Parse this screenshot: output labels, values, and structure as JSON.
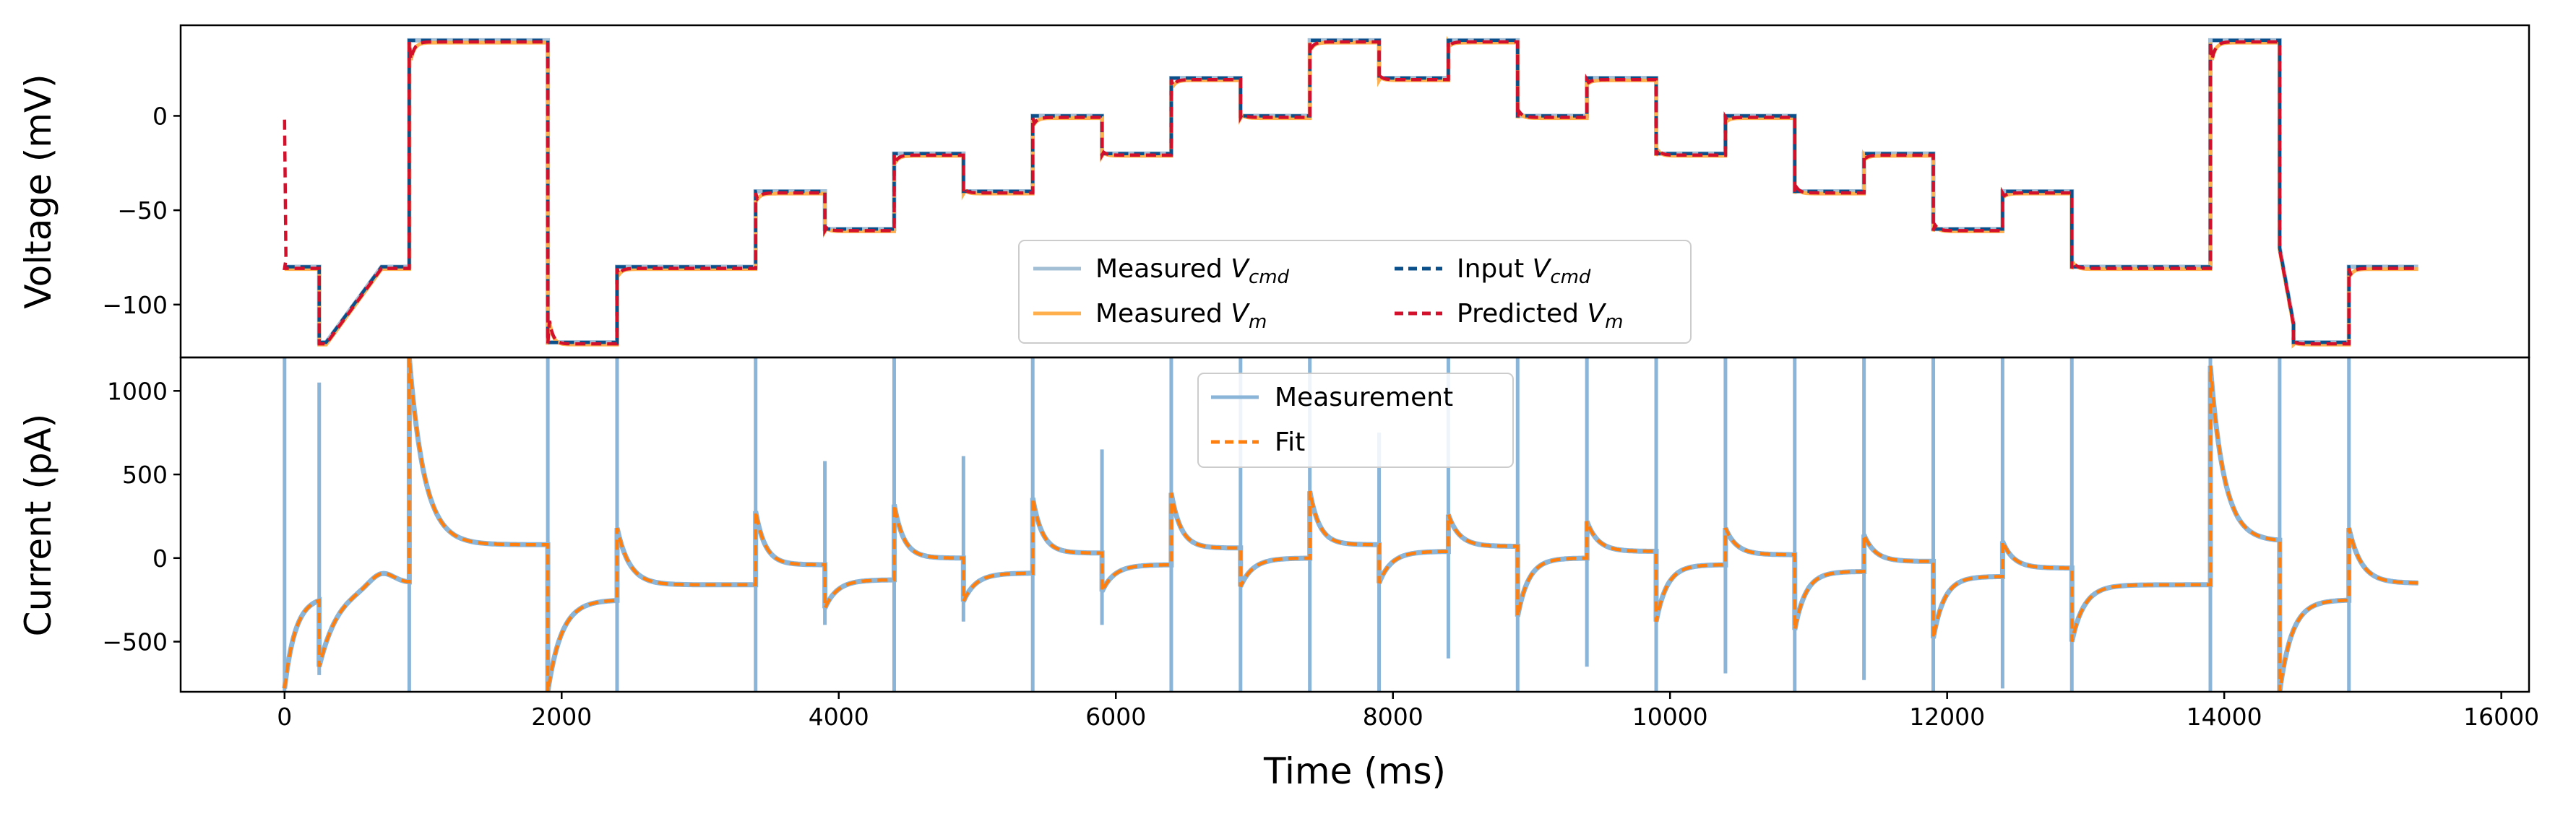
{
  "chart_data": [
    {
      "type": "line",
      "panel": "top",
      "xlabel": "",
      "ylabel": "Voltage (mV)",
      "xlim": [
        -750,
        16200
      ],
      "ylim": [
        -128,
        48
      ],
      "yticks": [
        {
          "value": 0,
          "label": "0"
        },
        {
          "value": -50,
          "label": "−50"
        },
        {
          "value": -100,
          "label": "−100"
        }
      ],
      "legend": {
        "placement": "lower center",
        "entries": [
          {
            "main": "Measured ",
            "sub": "V",
            "italic_sub": "cmd",
            "color": "#a3bfd6",
            "dash": "solid"
          },
          {
            "main": "Input ",
            "sub": "V",
            "italic_sub": "cmd",
            "color": "#0b4f8a",
            "dash": "dashed"
          },
          {
            "main": "Measured ",
            "sub": "V",
            "italic_sub": "m",
            "color": "#ffb04d",
            "dash": "solid"
          },
          {
            "main": "Predicted ",
            "sub": "V",
            "italic_sub": "m",
            "color": "#d3102c",
            "dash": "dashed"
          }
        ]
      },
      "steps": [
        {
          "t0": 0,
          "t1": 250,
          "v": -80,
          "ramp": false
        },
        {
          "t0": 250,
          "t1": 300,
          "v": -120,
          "ramp": false
        },
        {
          "t0": 300,
          "t1": 700,
          "v_start": -120,
          "v_end": -80,
          "ramp": true
        },
        {
          "t0": 700,
          "t1": 900,
          "v": -80,
          "ramp": false
        },
        {
          "t0": 900,
          "t1": 1900,
          "v": 40,
          "ramp": false
        },
        {
          "t0": 1900,
          "t1": 2400,
          "v": -120,
          "ramp": false
        },
        {
          "t0": 2400,
          "t1": 3400,
          "v": -80,
          "ramp": false
        },
        {
          "t0": 3400,
          "t1": 3900,
          "v": -40,
          "ramp": false
        },
        {
          "t0": 3900,
          "t1": 4400,
          "v": -60,
          "ramp": false
        },
        {
          "t0": 4400,
          "t1": 4900,
          "v": -20,
          "ramp": false
        },
        {
          "t0": 4900,
          "t1": 5400,
          "v": -40,
          "ramp": false
        },
        {
          "t0": 5400,
          "t1": 5900,
          "v": 0,
          "ramp": false
        },
        {
          "t0": 5900,
          "t1": 6400,
          "v": -20,
          "ramp": false
        },
        {
          "t0": 6400,
          "t1": 6900,
          "v": 20,
          "ramp": false
        },
        {
          "t0": 6900,
          "t1": 7400,
          "v": 0,
          "ramp": false
        },
        {
          "t0": 7400,
          "t1": 7900,
          "v": 40,
          "ramp": false
        },
        {
          "t0": 7900,
          "t1": 8400,
          "v": 20,
          "ramp": false
        },
        {
          "t0": 8400,
          "t1": 8900,
          "v": 40,
          "ramp": false
        },
        {
          "t0": 8900,
          "t1": 9400,
          "v": 0,
          "ramp": false
        },
        {
          "t0": 9400,
          "t1": 9900,
          "v": 20,
          "ramp": false
        },
        {
          "t0": 9900,
          "t1": 10400,
          "v": -20,
          "ramp": false
        },
        {
          "t0": 10400,
          "t1": 10900,
          "v": 0,
          "ramp": false
        },
        {
          "t0": 10900,
          "t1": 11400,
          "v": -40,
          "ramp": false
        },
        {
          "t0": 11400,
          "t1": 11900,
          "v": -20,
          "ramp": false
        },
        {
          "t0": 11900,
          "t1": 12400,
          "v": -60,
          "ramp": false
        },
        {
          "t0": 12400,
          "t1": 12900,
          "v": -40,
          "ramp": false
        },
        {
          "t0": 12900,
          "t1": 13900,
          "v": -80,
          "ramp": false
        },
        {
          "t0": 13900,
          "t1": 14400,
          "v": 40,
          "ramp": false
        },
        {
          "t0": 14400,
          "t1": 14500,
          "v_start": -70,
          "v_end": -110,
          "ramp": true
        },
        {
          "t0": 14500,
          "t1": 14900,
          "v": -120,
          "ramp": false
        },
        {
          "t0": 14900,
          "t1": 15400,
          "v": -80,
          "ramp": false
        }
      ],
      "predicted_initial": {
        "t": 0,
        "v": -2
      }
    },
    {
      "type": "line",
      "panel": "bottom",
      "xlabel": "Time (ms)",
      "ylabel": "Current (pA)",
      "xlim": [
        -750,
        16200
      ],
      "ylim": [
        -800,
        1200
      ],
      "xticks": [
        {
          "value": 0,
          "label": "0"
        },
        {
          "value": 2000,
          "label": "2000"
        },
        {
          "value": 4000,
          "label": "4000"
        },
        {
          "value": 6000,
          "label": "6000"
        },
        {
          "value": 8000,
          "label": "8000"
        },
        {
          "value": 10000,
          "label": "10000"
        },
        {
          "value": 12000,
          "label": "12000"
        },
        {
          "value": 14000,
          "label": "14000"
        },
        {
          "value": 16000,
          "label": "16000"
        }
      ],
      "yticks": [
        {
          "value": 1000,
          "label": "1000"
        },
        {
          "value": 500,
          "label": "500"
        },
        {
          "value": 0,
          "label": "0"
        },
        {
          "value": -500,
          "label": "−500"
        }
      ],
      "legend": {
        "placement": "upper center",
        "entries": [
          {
            "label": "Measurement",
            "color": "#8ab4d8",
            "dash": "solid"
          },
          {
            "label": "Fit",
            "color": "#ff7f0e",
            "dash": "dashed"
          }
        ]
      },
      "segments": [
        {
          "t0": 0,
          "t1": 250,
          "start": -780,
          "end": -230,
          "tau": 80
        },
        {
          "t0": 250,
          "t1": 900,
          "start": -650,
          "end": -140,
          "tau": 150,
          "bump": {
            "t": 700,
            "v": -60
          }
        },
        {
          "t0": 900,
          "t1": 1900,
          "start": 1200,
          "end": 80,
          "tau": 110
        },
        {
          "t0": 1900,
          "t1": 2400,
          "start": -800,
          "end": -250,
          "tau": 100
        },
        {
          "t0": 2400,
          "t1": 3400,
          "start": 180,
          "end": -160,
          "tau": 90
        },
        {
          "t0": 3400,
          "t1": 3900,
          "start": 280,
          "end": -40,
          "tau": 70
        },
        {
          "t0": 3900,
          "t1": 4400,
          "start": -300,
          "end": -130,
          "tau": 90
        },
        {
          "t0": 4400,
          "t1": 4900,
          "start": 320,
          "end": 0,
          "tau": 70
        },
        {
          "t0": 4900,
          "t1": 5400,
          "start": -260,
          "end": -90,
          "tau": 90
        },
        {
          "t0": 5400,
          "t1": 5900,
          "start": 360,
          "end": 30,
          "tau": 70
        },
        {
          "t0": 5900,
          "t1": 6400,
          "start": -200,
          "end": -40,
          "tau": 90
        },
        {
          "t0": 6400,
          "t1": 6900,
          "start": 390,
          "end": 60,
          "tau": 70
        },
        {
          "t0": 6900,
          "t1": 7400,
          "start": -170,
          "end": 0,
          "tau": 90
        },
        {
          "t0": 7400,
          "t1": 7900,
          "start": 400,
          "end": 80,
          "tau": 70
        },
        {
          "t0": 7900,
          "t1": 8400,
          "start": -150,
          "end": 40,
          "tau": 90
        },
        {
          "t0": 8400,
          "t1": 8900,
          "start": 260,
          "end": 70,
          "tau": 80
        },
        {
          "t0": 8900,
          "t1": 9400,
          "start": -350,
          "end": 0,
          "tau": 80
        },
        {
          "t0": 9400,
          "t1": 9900,
          "start": 220,
          "end": 40,
          "tau": 80
        },
        {
          "t0": 9900,
          "t1": 10400,
          "start": -380,
          "end": -40,
          "tau": 80
        },
        {
          "t0": 10400,
          "t1": 10900,
          "start": 180,
          "end": 20,
          "tau": 80
        },
        {
          "t0": 10900,
          "t1": 11400,
          "start": -430,
          "end": -80,
          "tau": 80
        },
        {
          "t0": 11400,
          "t1": 11900,
          "start": 140,
          "end": -20,
          "tau": 80
        },
        {
          "t0": 11900,
          "t1": 12400,
          "start": -480,
          "end": -110,
          "tau": 80
        },
        {
          "t0": 12400,
          "t1": 12900,
          "start": 100,
          "end": -60,
          "tau": 80
        },
        {
          "t0": 12900,
          "t1": 13900,
          "start": -500,
          "end": -160,
          "tau": 90
        },
        {
          "t0": 13900,
          "t1": 14400,
          "start": 1150,
          "end": 100,
          "tau": 100
        },
        {
          "t0": 14400,
          "t1": 14900,
          "start": -800,
          "end": -250,
          "tau": 90
        },
        {
          "t0": 14900,
          "t1": 15400,
          "start": 180,
          "end": -150,
          "tau": 90
        }
      ],
      "spikes": [
        {
          "t": 0,
          "up": 1200,
          "down": -800
        },
        {
          "t": 250,
          "up": 1050,
          "down": -700
        },
        {
          "t": 900,
          "up": 1200,
          "down": -800
        },
        {
          "t": 1900,
          "up": 1200,
          "down": -800
        },
        {
          "t": 2400,
          "up": 1200,
          "down": -800
        },
        {
          "t": 3400,
          "up": 1200,
          "down": -800
        },
        {
          "t": 3900,
          "up": 580,
          "down": -400
        },
        {
          "t": 4400,
          "up": 1200,
          "down": -800
        },
        {
          "t": 4900,
          "up": 610,
          "down": -380
        },
        {
          "t": 5400,
          "up": 1200,
          "down": -800
        },
        {
          "t": 5900,
          "up": 650,
          "down": -400
        },
        {
          "t": 6400,
          "up": 1200,
          "down": -800
        },
        {
          "t": 6900,
          "up": 1200,
          "down": -800
        },
        {
          "t": 7400,
          "up": 1200,
          "down": -800
        },
        {
          "t": 7900,
          "up": 750,
          "down": -800
        },
        {
          "t": 8400,
          "up": 1200,
          "down": -600
        },
        {
          "t": 8900,
          "up": 1200,
          "down": -800
        },
        {
          "t": 9400,
          "up": 1200,
          "down": -650
        },
        {
          "t": 9900,
          "up": 1200,
          "down": -800
        },
        {
          "t": 10400,
          "up": 1200,
          "down": -690
        },
        {
          "t": 10900,
          "up": 1200,
          "down": -800
        },
        {
          "t": 11400,
          "up": 1200,
          "down": -730
        },
        {
          "t": 11900,
          "up": 1200,
          "down": -800
        },
        {
          "t": 12400,
          "up": 1200,
          "down": -780
        },
        {
          "t": 12900,
          "up": 1200,
          "down": -800
        },
        {
          "t": 13900,
          "up": 1200,
          "down": -800
        },
        {
          "t": 14400,
          "up": 1200,
          "down": -800
        },
        {
          "t": 14900,
          "up": 1200,
          "down": -800
        }
      ]
    }
  ]
}
